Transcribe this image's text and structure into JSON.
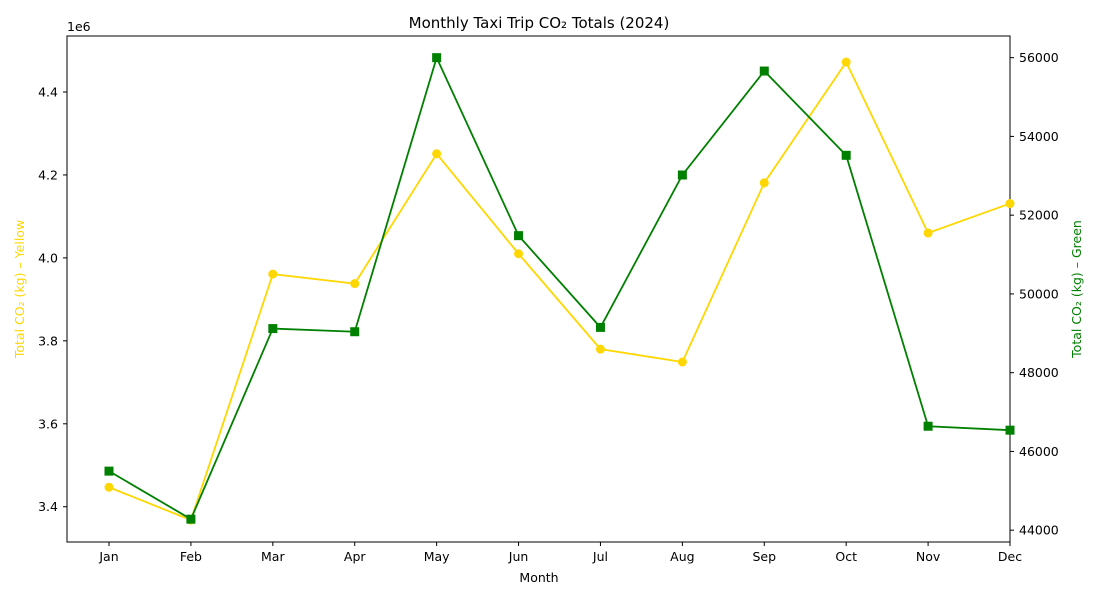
{
  "chart_data": {
    "type": "line",
    "title": "Monthly Taxi Trip CO₂ Totals (2024)",
    "xlabel": "Month",
    "categories": [
      "Jan",
      "Feb",
      "Mar",
      "Apr",
      "May",
      "Jun",
      "Jul",
      "Aug",
      "Sep",
      "Oct",
      "Nov",
      "Dec"
    ],
    "left_axis": {
      "label": "Total CO₂ (kg) – Yellow",
      "offset_text": "1e6",
      "ylim": [
        3.315,
        4.535
      ],
      "ticks": [
        3.4,
        3.6,
        3.8,
        4.0,
        4.2,
        4.4
      ],
      "tick_labels": [
        "3.4",
        "3.6",
        "3.8",
        "4.0",
        "4.2",
        "4.4"
      ],
      "color": "#FFD700"
    },
    "right_axis": {
      "label": "Total CO₂ (kg) – Green",
      "ylim": [
        43700,
        56550
      ],
      "ticks": [
        44000,
        46000,
        48000,
        50000,
        52000,
        54000,
        56000
      ],
      "tick_labels": [
        "44000",
        "46000",
        "48000",
        "50000",
        "52000",
        "54000",
        "56000"
      ],
      "color": "#008000"
    },
    "series": [
      {
        "name": "Yellow",
        "axis": "left",
        "marker": "circle",
        "color": "#FFD700",
        "values": [
          3.447,
          3.368,
          3.961,
          3.938,
          4.251,
          4.01,
          3.78,
          3.749,
          4.181,
          4.472,
          4.06,
          4.131
        ]
      },
      {
        "name": "Green",
        "axis": "right",
        "marker": "square",
        "color": "#008000",
        "values": [
          45500,
          44280,
          49120,
          49040,
          56000,
          51480,
          49150,
          53020,
          55660,
          53520,
          46640,
          46540
        ]
      }
    ],
    "grid": false,
    "legend": "none"
  }
}
